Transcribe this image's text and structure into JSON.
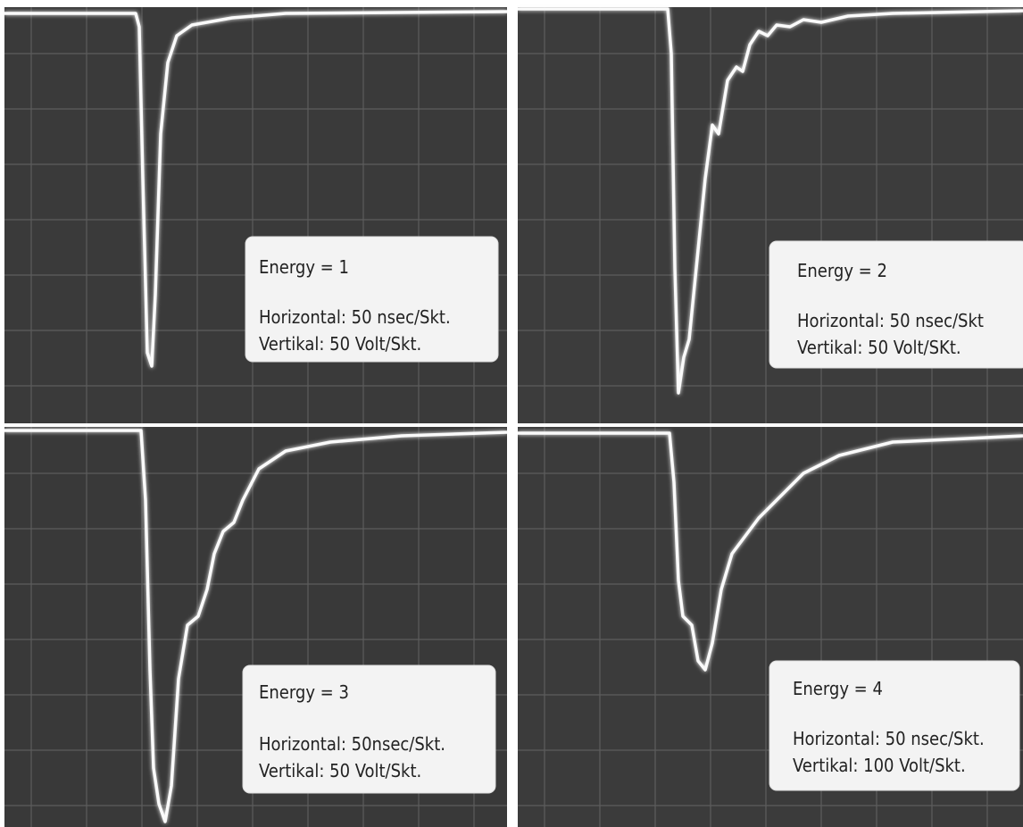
{
  "panels": [
    {
      "energy": "Energy = 1",
      "horizontal": "Horizontal: 50 nsec/Skt.",
      "vertical": "Vertikal: 50 Volt/Skt."
    },
    {
      "energy": "Energy = 2",
      "horizontal": "Horizontal: 50 nsec/Skt",
      "vertical": "Vertikal: 50 Volt/SKt."
    },
    {
      "energy": "Energy = 3",
      "horizontal": "Horizontal: 50nsec/Skt.",
      "vertical": "Vertikal: 50 Volt/Skt."
    },
    {
      "energy": "Energy = 4",
      "horizontal": "Horizontal: 50 nsec/Skt.",
      "vertical": "Vertikal: 100 Volt/Skt."
    }
  ]
}
